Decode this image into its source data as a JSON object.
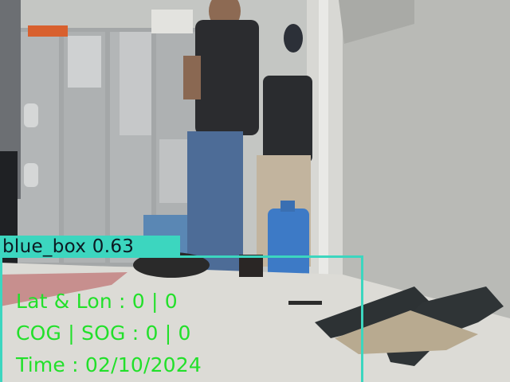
{
  "detection": {
    "label": "blue_box 0.63",
    "color": "#3cd6bf"
  },
  "hud": {
    "color": "#22e02a",
    "lat_lon": "Lat & Lon : 0 | 0",
    "cog_sog": "COG | SOG : 0 | 0",
    "time": "Time : 02/10/2024"
  }
}
